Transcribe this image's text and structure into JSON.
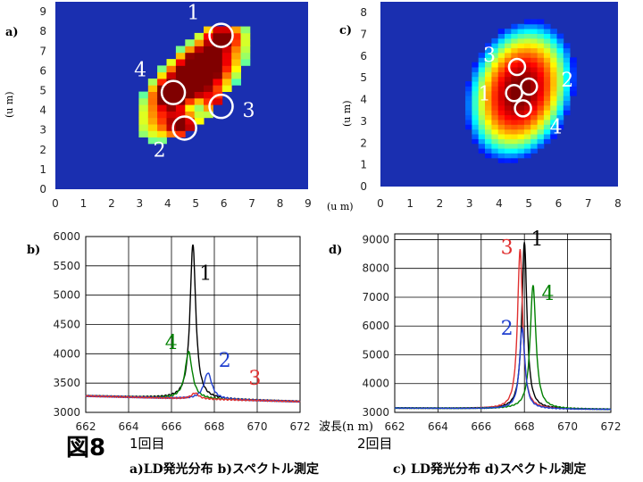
{
  "colors": {
    "blue_bg": "#1a2fb0",
    "black": "#000000",
    "green": "#008000",
    "blue": "#1f3fcf",
    "red": "#e03030"
  },
  "chart_data": [
    {
      "id": "a",
      "panel_label": "a)",
      "type": "heatmap",
      "ylabel": "(u m)",
      "xlim": [
        0,
        9
      ],
      "ylim": [
        0,
        9.5
      ],
      "x_ticks": [
        "0",
        "1",
        "2",
        "3",
        "4",
        "5",
        "6",
        "7",
        "8",
        "9"
      ],
      "y_ticks": [
        "0",
        "1",
        "2",
        "3",
        "4",
        "5",
        "6",
        "7",
        "8",
        "9"
      ],
      "spots": [
        {
          "label": "1",
          "x": 5.9,
          "y": 7.8
        },
        {
          "label": "4",
          "x": 4.2,
          "y": 4.9
        },
        {
          "label": "3",
          "x": 5.9,
          "y": 4.2
        },
        {
          "label": "2",
          "x": 4.6,
          "y": 3.1
        }
      ]
    },
    {
      "id": "c",
      "panel_label": "c)",
      "type": "heatmap",
      "xlabel": "(u m)",
      "ylabel": "(u m)",
      "xlim": [
        0,
        8
      ],
      "ylim": [
        0,
        8.5
      ],
      "x_ticks": [
        "0",
        "1",
        "2",
        "3",
        "4",
        "5",
        "6",
        "7",
        "8"
      ],
      "y_ticks": [
        "0",
        "1",
        "2",
        "3",
        "4",
        "5",
        "6",
        "7",
        "8"
      ],
      "spots": [
        {
          "label": "3",
          "x": 4.6,
          "y": 5.5
        },
        {
          "label": "2",
          "x": 5.0,
          "y": 4.6
        },
        {
          "label": "1",
          "x": 4.5,
          "y": 4.3
        },
        {
          "label": "4",
          "x": 4.8,
          "y": 3.6
        }
      ]
    },
    {
      "id": "b",
      "panel_label": "b)",
      "type": "line",
      "xlabel": "波長(n m)",
      "xlim": [
        662,
        672
      ],
      "ylim": [
        3000,
        6000
      ],
      "x_ticks": [
        "662",
        "664",
        "666",
        "668",
        "670",
        "672"
      ],
      "y_ticks": [
        "3000",
        "3500",
        "4000",
        "4500",
        "5000",
        "5500",
        "6000"
      ],
      "series": [
        {
          "label": "1",
          "color": "#000000",
          "peak_x": 667.0,
          "peak_y": 5920,
          "width": 0.16,
          "label_x": 667.3,
          "label_y": 5260
        },
        {
          "label": "4",
          "color": "#008000",
          "peak_x": 666.8,
          "peak_y": 4080,
          "width": 0.2,
          "label_x": 665.7,
          "label_y": 4080
        },
        {
          "label": "2",
          "color": "#1f3fcf",
          "peak_x": 667.7,
          "peak_y": 3730,
          "width": 0.22,
          "label_x": 668.2,
          "label_y": 3780
        },
        {
          "label": "3",
          "color": "#e03030",
          "peak_x": 667.1,
          "peak_y": 3380,
          "width": 0.2,
          "label_x": 669.6,
          "label_y": 3470
        }
      ],
      "baseline": 3280
    },
    {
      "id": "d",
      "panel_label": "d)",
      "type": "line",
      "xlim": [
        662,
        672
      ],
      "ylim": [
        3000,
        9200
      ],
      "x_ticks": [
        "662",
        "664",
        "666",
        "668",
        "670",
        "672"
      ],
      "y_ticks": [
        "3000",
        "4000",
        "5000",
        "6000",
        "7000",
        "8000",
        "9000"
      ],
      "series": [
        {
          "label": "1",
          "color": "#000000",
          "peak_x": 668.0,
          "peak_y": 8950,
          "width": 0.14,
          "label_x": 668.3,
          "label_y": 8800
        },
        {
          "label": "3",
          "color": "#e03030",
          "peak_x": 667.8,
          "peak_y": 8700,
          "width": 0.14,
          "label_x": 666.9,
          "label_y": 8500
        },
        {
          "label": "4",
          "color": "#008000",
          "peak_x": 668.4,
          "peak_y": 7450,
          "width": 0.16,
          "label_x": 668.8,
          "label_y": 6900
        },
        {
          "label": "2",
          "color": "#1f3fcf",
          "peak_x": 667.9,
          "peak_y": 5950,
          "width": 0.15,
          "label_x": 666.9,
          "label_y": 5700
        }
      ],
      "baseline": 3150
    }
  ],
  "captions": {
    "figure_number": "図8",
    "run1": "1回目",
    "run2": "2回目",
    "caption_left": "a)LD発光分布  b)スペクトル測定",
    "caption_right": "c) LD発光分布  d)スペクトル測定"
  }
}
